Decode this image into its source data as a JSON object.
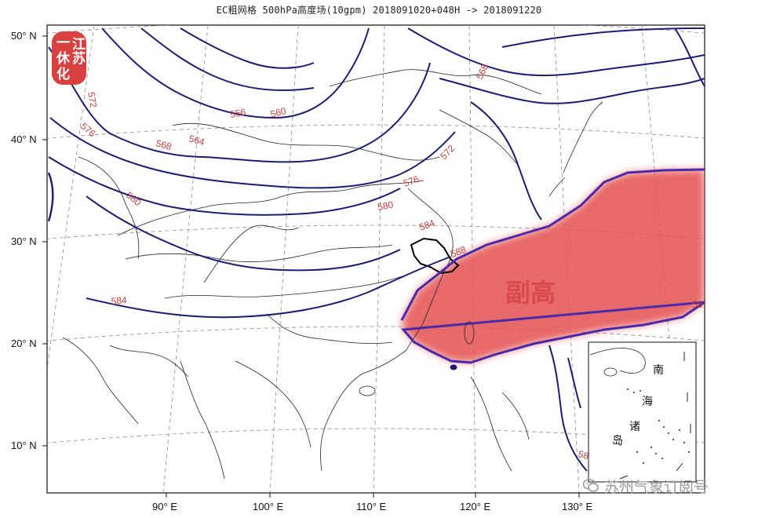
{
  "title": "EC粗网格  500hPa高度场(10gpm) 2018091020+048H -> 2018091220",
  "lat_labels": [
    "50° N",
    "40° N",
    "30° N",
    "20° N",
    "10° N"
  ],
  "lon_labels": [
    "90° E",
    "100° E",
    "110° E",
    "120° E",
    "130° E"
  ],
  "contour_labels": [
    "572",
    "576",
    "568",
    "556",
    "560",
    "564",
    "568",
    "572",
    "576",
    "580",
    "580",
    "584",
    "588",
    "584",
    "58",
    "58"
  ],
  "region_label": "副高",
  "inset_labels": [
    "南",
    "海",
    "诸",
    "岛"
  ],
  "stamp": {
    "lines": [
      "江",
      "苏",
      "一",
      "休",
      "化"
    ]
  },
  "watermark": {
    "text": "苏州气象订阅号"
  },
  "colors": {
    "contour": "#1e1a78",
    "subtropical_high": "#e65c5c",
    "contour_label": "#d03a3a"
  }
}
